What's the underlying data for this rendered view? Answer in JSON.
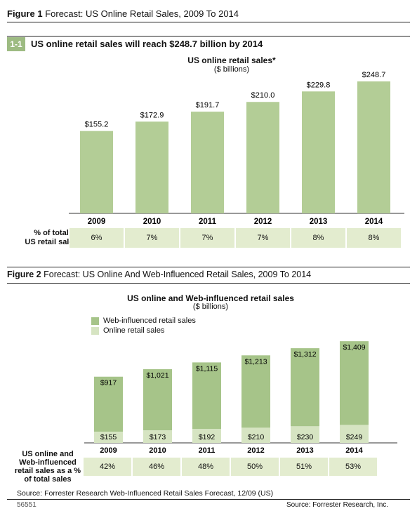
{
  "figure1": {
    "label": "Figure 1",
    "title": "Forecast: US Online Retail Sales, 2009 To 2014",
    "sub_number": "1-1",
    "sub_title": "US online retail sales will reach $248.7 billion by 2014",
    "chart_title": "US online retail sales*",
    "chart_subtitle": "($ billions)",
    "row_label_line1": "% of total",
    "row_label_line2": "US retail sales",
    "percentages": [
      "6%",
      "7%",
      "7%",
      "7%",
      "8%",
      "8%"
    ]
  },
  "figure2": {
    "label": "Figure 2",
    "title": "Forecast: US Online And Web-Influenced Retail Sales, 2009 To 2014",
    "chart_title": "US online and Web-influenced retail sales",
    "chart_subtitle": "($ billions)",
    "legend": [
      "Web-influenced retail sales",
      "Online retail sales"
    ],
    "row_label_line1": "US online and",
    "row_label_line2": "Web-influenced",
    "row_label_line3": "retail sales as a %",
    "row_label_line4": "of total sales",
    "percentages": [
      "42%",
      "46%",
      "48%",
      "50%",
      "51%",
      "53%"
    ]
  },
  "footer": {
    "source": "Source: Forrester Research Web-Influenced Retail Sales Forecast, 12/09 (US)",
    "doc_number": "56551",
    "source_right": "Source: Forrester Research, Inc."
  },
  "colors": {
    "bar_green": "#b3cd96",
    "web_influenced": "#a6c489",
    "online": "#d6e4c2",
    "badge": "#9dbb82",
    "pct_cell": "#e3eccf"
  },
  "chart_data": [
    {
      "type": "bar",
      "title": "US online retail sales*",
      "subtitle": "($ billions)",
      "categories": [
        "2009",
        "2010",
        "2011",
        "2012",
        "2013",
        "2014"
      ],
      "values": [
        155.2,
        172.9,
        191.7,
        210.0,
        229.8,
        248.7
      ],
      "labels": [
        "$155.2",
        "$172.9",
        "$191.7",
        "$210.0",
        "$229.8",
        "$248.7"
      ],
      "ylim": [
        0,
        250
      ],
      "grid": false
    },
    {
      "type": "bar",
      "title": "US online and Web-influenced retail sales",
      "subtitle": "($ billions)",
      "categories": [
        "2009",
        "2010",
        "2011",
        "2012",
        "2013",
        "2014"
      ],
      "series": [
        {
          "name": "Online retail sales",
          "values": [
            155,
            173,
            192,
            210,
            230,
            249
          ],
          "labels": [
            "$155",
            "$173",
            "$192",
            "$210",
            "$230",
            "$249"
          ]
        },
        {
          "name": "Web-influenced retail sales",
          "values": [
            917,
            1021,
            1115,
            1213,
            1312,
            1409
          ],
          "labels": [
            "$917",
            "$1,021",
            "$1,115",
            "$1,213",
            "$1,312",
            "$1,409"
          ]
        }
      ],
      "ylim": [
        0,
        1420
      ],
      "legend": "top-left",
      "grid": false
    }
  ]
}
